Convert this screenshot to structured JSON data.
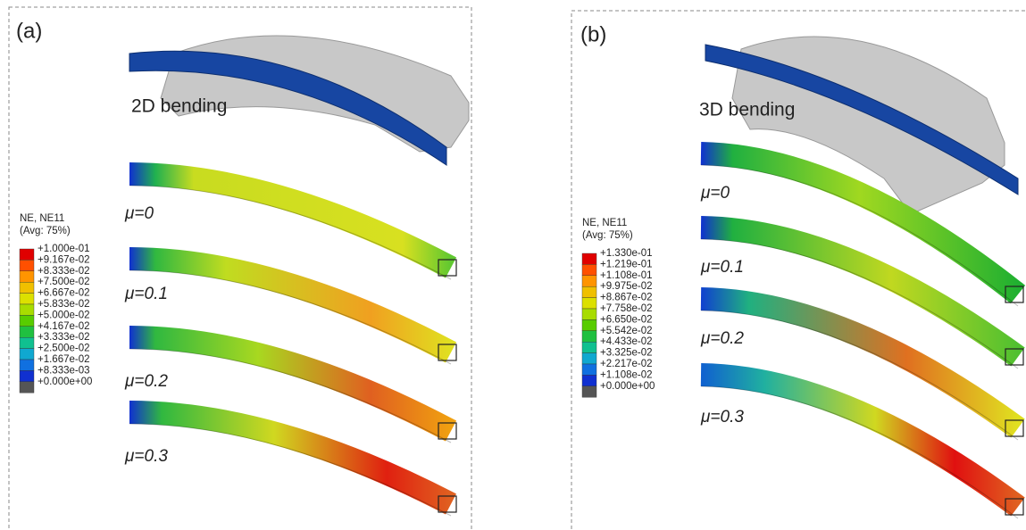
{
  "panel_a": {
    "label": "(a)",
    "title": "2D bending",
    "cases": [
      "μ=0",
      "μ=0.1",
      "μ=0.2",
      "μ=0.3"
    ],
    "legend": {
      "title": "NE, NE11",
      "subtitle": "(Avg: 75%)",
      "entries": [
        "+1.000e-01",
        "+9.167e-02",
        "+8.333e-02",
        "+7.500e-02",
        "+6.667e-02",
        "+5.833e-02",
        "+5.000e-02",
        "+4.167e-02",
        "+3.333e-02",
        "+2.500e-02",
        "+1.667e-02",
        "+8.333e-03",
        "+0.000e+00"
      ]
    }
  },
  "panel_b": {
    "label": "(b)",
    "title": "3D bending",
    "cases": [
      "μ=0",
      "μ=0.1",
      "μ=0.2",
      "μ=0.3"
    ],
    "legend": {
      "title": "NE, NE11",
      "subtitle": "(Avg: 75%)",
      "entries": [
        "+1.330e-01",
        "+1.219e-01",
        "+1.108e-01",
        "+9.975e-02",
        "+8.867e-02",
        "+7.758e-02",
        "+6.650e-02",
        "+5.542e-02",
        "+4.433e-02",
        "+3.325e-02",
        "+2.217e-02",
        "+1.108e-02",
        "+0.000e+00"
      ]
    }
  }
}
